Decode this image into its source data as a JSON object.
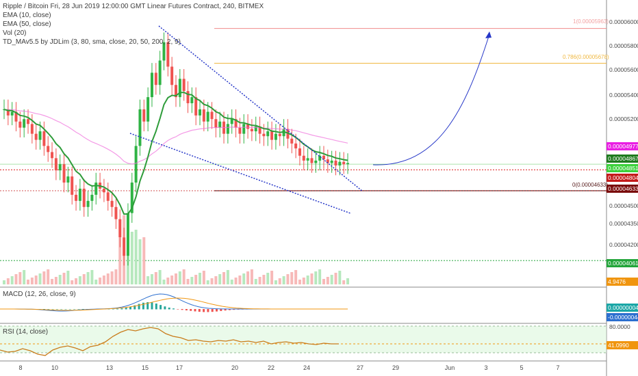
{
  "header": {
    "title": "Ripple / Bitcoin Fri, 28 Jun 2019 12:00:00 GMT Linear Futures Contract, 240, BITMEX",
    "studies": [
      "EMA (10, close)",
      "EMA (50, close)",
      "Vol (20)",
      "TD_MAv5.5 by JDLim (3, 80, sma, close, 20, 50, 200, 2, 9)"
    ]
  },
  "price_axis": {
    "ticks": [
      "0.00006000",
      "0.00005800",
      "0.00005600",
      "0.00005400",
      "0.00005200",
      "0.00004500",
      "0.00004350",
      "0.00004200"
    ]
  },
  "price_tags": [
    {
      "text": "0.00004977",
      "color": "#e91ee3"
    },
    {
      "text": "0.00004867",
      "color": "#1e7a1e"
    },
    {
      "text": "0.00004851",
      "color": "#3bd13b"
    },
    {
      "text": "0.00004804",
      "color": "#c41a1a"
    },
    {
      "text": "0.00004633",
      "color": "#7a0b0b"
    },
    {
      "text": "0.00004061",
      "color": "#22a53a"
    },
    {
      "text": "4.9476",
      "color": "#f0950f"
    }
  ],
  "fib_labels": {
    "top": "1(0.00005963)",
    "mid": "0.786(0.00005678)",
    "zero": "0(0.00004633)"
  },
  "macd": {
    "label": "MACD (12, 26, close, 9)",
    "tags": [
      {
        "text": "0.00000004",
        "color": "#1aa6a6"
      },
      {
        "text": "-0.00000044",
        "color": "#2c6fcf"
      }
    ]
  },
  "rsi": {
    "label": "RSI (14, close)",
    "ticks": [
      "80.0000"
    ],
    "tags": [
      {
        "text": "41.0990",
        "color": "#f0950f"
      }
    ]
  },
  "time_axis": {
    "ticks": [
      "8",
      "10",
      "13",
      "15",
      "17",
      "20",
      "22",
      "24",
      "27",
      "29",
      "Jun",
      "3",
      "5",
      "7"
    ]
  },
  "colors": {
    "up": "#2fb344",
    "down": "#ef5350",
    "ema10": "#2e9c3a",
    "ema50": "#f06ddb",
    "projection": "#2536c8",
    "wedge": "#2536c8",
    "fib_top": "#f08a8a",
    "fib_mid": "#f0b840",
    "fib_zero": "#5a2020"
  },
  "chart_data": {
    "type": "candlestick",
    "symbol": "XRPXBT",
    "timeframe": "240",
    "price_range": [
      4e-05,
      6.1e-05
    ],
    "time_range_labels": [
      "8",
      "10",
      "13",
      "15",
      "17",
      "20",
      "22",
      "24",
      "27",
      "29",
      "Jun",
      "3",
      "5",
      "7"
    ],
    "closes": [
      5.3,
      5.25,
      5.28,
      5.2,
      5.15,
      5.22,
      5.18,
      5.1,
      5.05,
      5.12,
      5.0,
      4.95,
      4.9,
      4.8,
      4.85,
      4.7,
      4.75,
      4.6,
      4.55,
      4.65,
      4.5,
      4.55,
      4.6,
      4.7,
      4.65,
      4.62,
      4.55,
      4.5,
      4.4,
      4.25,
      4.1,
      4.45,
      4.7,
      5.0,
      5.3,
      5.2,
      5.4,
      5.6,
      5.5,
      5.7,
      5.85,
      5.65,
      5.5,
      5.4,
      5.55,
      5.45,
      5.35,
      5.4,
      5.25,
      5.3,
      5.2,
      5.28,
      5.22,
      5.15,
      5.2,
      5.1,
      5.18,
      5.22,
      5.15,
      5.1,
      5.18,
      5.14,
      5.12,
      5.16,
      5.1,
      5.08,
      5.12,
      5.05,
      5.1,
      5.08,
      5.14,
      5.06,
      5.02,
      4.98,
      4.92,
      4.88,
      4.9,
      4.86,
      4.88,
      4.92,
      4.89,
      4.86,
      4.88,
      4.84,
      4.87,
      4.85,
      4.86
    ],
    "ema10_end": 4.867e-05,
    "ema50_end": 4.977e-05,
    "last_price": 4.851e-05,
    "levels": {
      "fib_1": 5.963e-05,
      "fib_0786": 5.678e-05,
      "fib_0": 4.633e-05,
      "red_dashed": 4.804e-05,
      "green_dashed": 4.061e-05
    },
    "projection": {
      "from": 4.84e-05,
      "to": 5.9e-05
    }
  }
}
